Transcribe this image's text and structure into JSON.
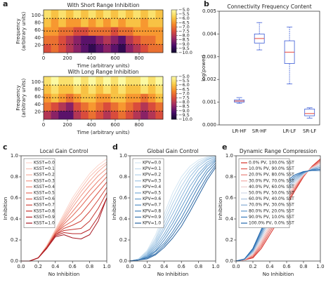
{
  "chart_data": [
    {
      "type": "heatmap",
      "panel": "a",
      "title": "With Short Range Inhibition",
      "xlabel": "Time (arbitrary units)",
      "ylabel": "Frequency\n(arbitrary units)",
      "xlim": [
        0,
        1000
      ],
      "ylim": [
        0,
        115
      ],
      "xticks": [
        0,
        200,
        400,
        600,
        800
      ],
      "yticks": [
        20,
        40,
        60,
        80,
        100
      ],
      "clim": [
        -10,
        -5
      ],
      "colormap": [
        "#0d0829",
        "#4a0c6b",
        "#9a2865",
        "#d94c3c",
        "#f68a2a",
        "#f9d04a",
        "#fcfaa4"
      ],
      "cticks": [
        {
          "value": -5,
          "label": "−5.0"
        },
        {
          "value": -5.5,
          "label": "−5.5"
        },
        {
          "value": -6,
          "label": "−6.0"
        },
        {
          "value": -6.5,
          "label": "−6.5"
        },
        {
          "value": -7,
          "label": "−7.0"
        },
        {
          "value": -7.5,
          "label": "−7.5"
        },
        {
          "value": -8,
          "label": "−8.0"
        },
        {
          "value": -8.5,
          "label": "−8.5"
        },
        {
          "value": -9,
          "label": "−9.0"
        },
        {
          "value": -9.5,
          "label": "−9.5"
        },
        {
          "value": -10,
          "label": "−10.0"
        }
      ],
      "hlines": [
        22,
        58,
        92
      ],
      "values": [
        [
          -7.5,
          -7,
          -7.5,
          -8,
          -8.5,
          -9,
          -9.5,
          -9,
          -8.5,
          -9,
          -9.5,
          -8.5,
          -8,
          -7.5,
          -7,
          -7
        ],
        [
          -7,
          -7,
          -7.5,
          -8,
          -8.5,
          -9,
          -9,
          -8.5,
          -8,
          -8.5,
          -9,
          -8,
          -7.5,
          -7,
          -7,
          -6.5
        ],
        [
          -6.5,
          -6.5,
          -7,
          -7,
          -7.5,
          -7.5,
          -7,
          -7,
          -7,
          -7.5,
          -7,
          -7,
          -6.5,
          -6.5,
          -6.5,
          -6.5
        ],
        [
          -6,
          -6.5,
          -6,
          -6.5,
          -6.5,
          -6,
          -6.5,
          -6,
          -6.5,
          -6,
          -6.5,
          -6,
          -6,
          -6.5,
          -6,
          -6
        ],
        [
          -5.5,
          -6,
          -5.5,
          -6,
          -5.5,
          -6,
          -5.5,
          -6,
          -5.5,
          -6,
          -5.5,
          -6,
          -5.5,
          -6,
          -5.5,
          -6
        ]
      ]
    },
    {
      "type": "heatmap",
      "title": "With Long Range Inhibition",
      "xlabel": "Time (arbitrary units)",
      "ylabel": "Frequency\n(arbitrary units)",
      "xlim": [
        0,
        1000
      ],
      "ylim": [
        0,
        115
      ],
      "xticks": [
        0,
        200,
        400,
        600,
        800
      ],
      "yticks": [
        20,
        40,
        60,
        80,
        100
      ],
      "clim": [
        -10,
        -5
      ],
      "colormap": [
        "#0d0829",
        "#4a0c6b",
        "#9a2865",
        "#d94c3c",
        "#f68a2a",
        "#f9d04a",
        "#fcfaa4"
      ],
      "cticks": [
        {
          "value": -5,
          "label": "−5.0"
        },
        {
          "value": -5.5,
          "label": "−5.5"
        },
        {
          "value": -6,
          "label": "−6.0"
        },
        {
          "value": -6.5,
          "label": "−6.5"
        },
        {
          "value": -7,
          "label": "−7.0"
        },
        {
          "value": -7.5,
          "label": "−7.5"
        },
        {
          "value": -8,
          "label": "−8.0"
        },
        {
          "value": -8.5,
          "label": "−8.5"
        },
        {
          "value": -9,
          "label": "−9.0"
        },
        {
          "value": -9.5,
          "label": "−9.5"
        },
        {
          "value": -10,
          "label": "−10.0"
        }
      ],
      "hlines": [
        22,
        58,
        92
      ],
      "values": [
        [
          -8,
          -8.5,
          -9,
          -9,
          -8,
          -7.5,
          -7,
          -7.5,
          -8,
          -7.5,
          -7,
          -7.5,
          -8,
          -8.5,
          -8,
          -7.5
        ],
        [
          -7,
          -7.5,
          -8,
          -8.5,
          -7.5,
          -7,
          -6.5,
          -7,
          -7.5,
          -7,
          -6.5,
          -7,
          -7.5,
          -8,
          -7.5,
          -7
        ],
        [
          -6.5,
          -6,
          -6.5,
          -7,
          -6.5,
          -6,
          -6,
          -6.5,
          -6.5,
          -6,
          -6,
          -6.5,
          -6.5,
          -7,
          -6.5,
          -6
        ],
        [
          -6,
          -5.5,
          -6,
          -6,
          -5.5,
          -6,
          -5.5,
          -6,
          -5.5,
          -6,
          -5.5,
          -6,
          -6,
          -5.5,
          -6,
          -5.5
        ],
        [
          -5.5,
          -5,
          -5.5,
          -5.5,
          -5,
          -5.5,
          -5,
          -5.5,
          -5,
          -5.5,
          -5,
          -5.5,
          -5.5,
          -5,
          -5.5,
          -5
        ]
      ]
    },
    {
      "type": "box",
      "panel": "b",
      "title": "Connectivity Frequency Content",
      "ylabel": "log(power)",
      "categories": [
        "LR-HF",
        "SR-HF",
        "LR-LF",
        "SR-LF"
      ],
      "whisker_low": [
        0.00095,
        0.0033,
        0.0018,
        0.0003
      ],
      "q1": [
        0.001,
        0.0036,
        0.0027,
        0.0004
      ],
      "median": [
        0.00105,
        0.0038,
        0.0032,
        0.0005
      ],
      "q3": [
        0.0011,
        0.004,
        0.0037,
        0.0007
      ],
      "whisker_high": [
        0.0012,
        0.0045,
        0.0043,
        0.00075
      ],
      "box_color": "#3b5bd6",
      "median_color": "#e8463b",
      "ylim": [
        0,
        0.005
      ],
      "yticks": [
        {
          "value": 0,
          "label": "0.000"
        },
        0.001,
        0.002,
        0.003,
        0.004,
        0.005
      ]
    },
    {
      "type": "line",
      "panel": "c",
      "title": "Local Gain Control",
      "xlabel": "No Inhibition",
      "ylabel": "Inhibition",
      "legend": "upper left",
      "xlim": [
        0,
        1
      ],
      "ylim": [
        0,
        1
      ],
      "xticks": [
        {
          "value": 0,
          "label": "0.0"
        },
        0.2,
        0.4,
        0.6,
        0.8,
        {
          "value": 1,
          "label": "1.0"
        }
      ],
      "yticks": [
        {
          "value": 0,
          "label": "0.0"
        },
        0.2,
        0.4,
        0.6,
        0.8,
        {
          "value": 1,
          "label": "1.0"
        }
      ],
      "x": [
        0,
        0.1,
        0.2,
        0.3,
        0.4,
        0.5,
        0.6,
        0.7,
        0.8,
        0.9,
        1.0
      ],
      "series": [
        {
          "name": "KSST=0.0",
          "color": "#fcd5cb",
          "values": [
            0,
            0,
            0.03,
            0.15,
            0.3,
            0.45,
            0.6,
            0.72,
            0.83,
            0.91,
            0.97
          ]
        },
        {
          "name": "KSST=0.1",
          "color": "#f9c1b4",
          "values": [
            0,
            0,
            0.03,
            0.14,
            0.29,
            0.43,
            0.57,
            0.69,
            0.8,
            0.88,
            0.94
          ]
        },
        {
          "name": "KSST=0.2",
          "color": "#f5ad9e",
          "values": [
            0,
            0,
            0.03,
            0.14,
            0.28,
            0.41,
            0.54,
            0.66,
            0.76,
            0.85,
            0.92
          ]
        },
        {
          "name": "KSST=0.3",
          "color": "#f19888",
          "values": [
            0,
            0,
            0.03,
            0.14,
            0.27,
            0.39,
            0.51,
            0.62,
            0.72,
            0.81,
            0.88
          ]
        },
        {
          "name": "KSST=0.4",
          "color": "#ec8373",
          "values": [
            0,
            0,
            0.03,
            0.13,
            0.27,
            0.37,
            0.47,
            0.57,
            0.67,
            0.76,
            0.84
          ]
        },
        {
          "name": "KSST=0.5",
          "color": "#e56e5e",
          "values": [
            0,
            0,
            0.03,
            0.13,
            0.26,
            0.35,
            0.43,
            0.52,
            0.62,
            0.71,
            0.8
          ]
        },
        {
          "name": "KSST=0.6",
          "color": "#dc594b",
          "values": [
            0,
            0,
            0.03,
            0.13,
            0.26,
            0.33,
            0.38,
            0.45,
            0.55,
            0.65,
            0.75
          ]
        },
        {
          "name": "KSST=0.7",
          "color": "#d1453b",
          "values": [
            0,
            0,
            0.03,
            0.13,
            0.25,
            0.31,
            0.34,
            0.38,
            0.47,
            0.58,
            0.7
          ]
        },
        {
          "name": "KSST=0.8",
          "color": "#c5342f",
          "values": [
            0,
            0,
            0.03,
            0.13,
            0.25,
            0.29,
            0.3,
            0.31,
            0.38,
            0.5,
            0.65
          ]
        },
        {
          "name": "KSST=0.9",
          "color": "#b82529",
          "values": [
            0,
            0,
            0.03,
            0.12,
            0.24,
            0.27,
            0.26,
            0.26,
            0.3,
            0.42,
            0.6
          ]
        },
        {
          "name": "KSST=1.0",
          "color": "#a81b25",
          "values": [
            0,
            0,
            0.03,
            0.12,
            0.23,
            0.25,
            0.22,
            0.21,
            0.25,
            0.38,
            0.6
          ]
        }
      ]
    },
    {
      "type": "line",
      "panel": "d",
      "title": "Global Gain Control",
      "xlabel": "No Inhibition",
      "ylabel": "Inhibition",
      "legend": "upper left",
      "xlim": [
        0,
        1
      ],
      "ylim": [
        0,
        1
      ],
      "xticks": [
        {
          "value": 0,
          "label": "0.0"
        },
        0.2,
        0.4,
        0.6,
        0.8,
        {
          "value": 1,
          "label": "1.0"
        }
      ],
      "yticks": [
        {
          "value": 0,
          "label": "0.0"
        },
        0.2,
        0.4,
        0.6,
        0.8,
        {
          "value": 1,
          "label": "1.0"
        }
      ],
      "x": [
        0,
        0.1,
        0.2,
        0.3,
        0.4,
        0.5,
        0.6,
        0.7,
        0.8,
        0.9,
        1.0
      ],
      "series": [
        {
          "name": "KPV=0.0",
          "color": "#d4e6f3",
          "values": [
            0,
            0.02,
            0.1,
            0.25,
            0.45,
            0.65,
            0.8,
            0.9,
            0.96,
            0.99,
            1.0
          ]
        },
        {
          "name": "KPV=0.1",
          "color": "#c2dbee",
          "values": [
            0,
            0.02,
            0.09,
            0.22,
            0.41,
            0.6,
            0.76,
            0.87,
            0.94,
            0.98,
            1.0
          ]
        },
        {
          "name": "KPV=0.2",
          "color": "#b0cfe8",
          "values": [
            0,
            0.02,
            0.08,
            0.2,
            0.37,
            0.55,
            0.71,
            0.84,
            0.92,
            0.97,
            0.99
          ]
        },
        {
          "name": "KPV=0.3",
          "color": "#9dc3e2",
          "values": [
            0,
            0.01,
            0.07,
            0.18,
            0.33,
            0.5,
            0.66,
            0.8,
            0.9,
            0.96,
            0.99
          ]
        },
        {
          "name": "KPV=0.4",
          "color": "#8ab6dc",
          "values": [
            0,
            0.01,
            0.06,
            0.16,
            0.3,
            0.45,
            0.61,
            0.76,
            0.87,
            0.94,
            0.98
          ]
        },
        {
          "name": "KPV=0.5",
          "color": "#77a9d4",
          "values": [
            0,
            0.01,
            0.05,
            0.14,
            0.26,
            0.4,
            0.56,
            0.71,
            0.83,
            0.92,
            0.97
          ]
        },
        {
          "name": "KPV=0.6",
          "color": "#659ccc",
          "values": [
            0,
            0.01,
            0.04,
            0.12,
            0.23,
            0.36,
            0.51,
            0.66,
            0.8,
            0.9,
            0.96
          ]
        },
        {
          "name": "KPV=0.7",
          "color": "#538ec3",
          "values": [
            0,
            0.01,
            0.04,
            0.1,
            0.2,
            0.32,
            0.46,
            0.61,
            0.75,
            0.87,
            0.95
          ]
        },
        {
          "name": "KPV=0.8",
          "color": "#4380b9",
          "values": [
            0,
            0.01,
            0.03,
            0.09,
            0.17,
            0.28,
            0.41,
            0.56,
            0.71,
            0.84,
            0.93
          ]
        },
        {
          "name": "KPV=0.9",
          "color": "#3572ad",
          "values": [
            0,
            0.01,
            0.03,
            0.07,
            0.15,
            0.25,
            0.37,
            0.51,
            0.66,
            0.8,
            0.91
          ]
        },
        {
          "name": "KPV=1.0",
          "color": "#2a64a0",
          "values": [
            0,
            0.01,
            0.02,
            0.06,
            0.13,
            0.22,
            0.33,
            0.47,
            0.62,
            0.77,
            0.89
          ]
        }
      ]
    },
    {
      "type": "line",
      "panel": "e",
      "title": "Dynamic Range Compression",
      "xlabel": "No Inhibition",
      "ylabel": "Inhibition",
      "legend": "upper left",
      "xlim": [
        0,
        1
      ],
      "ylim": [
        0,
        1
      ],
      "xticks": [
        {
          "value": 0,
          "label": "0.0"
        },
        0.2,
        0.4,
        0.6,
        0.8,
        {
          "value": 1,
          "label": "1.0"
        }
      ],
      "yticks": [
        {
          "value": 0,
          "label": "0.0"
        },
        0.2,
        0.4,
        0.6,
        0.8,
        {
          "value": 1,
          "label": "1.0"
        }
      ],
      "x": [
        0,
        0.1,
        0.2,
        0.3,
        0.4,
        0.5,
        0.6,
        0.7,
        0.8,
        0.9,
        1.0
      ],
      "series": [
        {
          "name": "0.0% PV, 100.0% SST",
          "color": "#d62f27",
          "values": [
            0,
            0.01,
            0.03,
            0.12,
            0.25,
            0.38,
            0.53,
            0.67,
            0.8,
            0.9,
            0.97
          ]
        },
        {
          "name": "10.0% PV, 90.0% SST",
          "color": "#e0564f",
          "values": [
            0,
            0.011,
            0.039,
            0.138,
            0.275,
            0.408,
            0.553,
            0.685,
            0.805,
            0.896,
            0.959
          ]
        },
        {
          "name": "20.0% PV, 80.0% SST",
          "color": "#ea8079",
          "values": [
            0,
            0.012,
            0.048,
            0.156,
            0.3,
            0.436,
            0.576,
            0.7,
            0.81,
            0.892,
            0.948
          ]
        },
        {
          "name": "30.0% PV, 70.0% SST",
          "color": "#f2aaa5",
          "values": [
            0,
            0.013,
            0.057,
            0.174,
            0.325,
            0.464,
            0.599,
            0.715,
            0.815,
            0.888,
            0.937
          ]
        },
        {
          "name": "40.0% PV, 60.0% SST",
          "color": "#eccccc",
          "values": [
            0,
            0.014,
            0.066,
            0.192,
            0.35,
            0.492,
            0.622,
            0.73,
            0.82,
            0.884,
            0.926
          ]
        },
        {
          "name": "50.0% PV, 50.0% SST",
          "color": "#d0d8e8",
          "values": [
            0,
            0.015,
            0.075,
            0.21,
            0.375,
            0.52,
            0.645,
            0.745,
            0.825,
            0.88,
            0.915
          ]
        },
        {
          "name": "60.0% PV, 40.0% SST",
          "color": "#aac4df",
          "values": [
            0,
            0.016,
            0.084,
            0.228,
            0.4,
            0.548,
            0.668,
            0.76,
            0.83,
            0.876,
            0.904
          ]
        },
        {
          "name": "70.0% PV, 30.0% SST",
          "color": "#84acd4",
          "values": [
            0,
            0.017,
            0.093,
            0.246,
            0.425,
            0.576,
            0.691,
            0.775,
            0.835,
            0.872,
            0.893
          ]
        },
        {
          "name": "80.0% PV, 20.0% SST",
          "color": "#5e94c8",
          "values": [
            0,
            0.018,
            0.102,
            0.264,
            0.45,
            0.604,
            0.714,
            0.79,
            0.84,
            0.868,
            0.882
          ]
        },
        {
          "name": "90.0% PV, 10.0% SST",
          "color": "#3a7bbb",
          "values": [
            0,
            0.019,
            0.111,
            0.282,
            0.475,
            0.632,
            0.737,
            0.805,
            0.845,
            0.864,
            0.871
          ]
        },
        {
          "name": "100.0% PV, 0.0% SST",
          "color": "#2166ac",
          "values": [
            0,
            0.02,
            0.12,
            0.3,
            0.5,
            0.66,
            0.76,
            0.82,
            0.85,
            0.86,
            0.86
          ]
        }
      ]
    }
  ]
}
